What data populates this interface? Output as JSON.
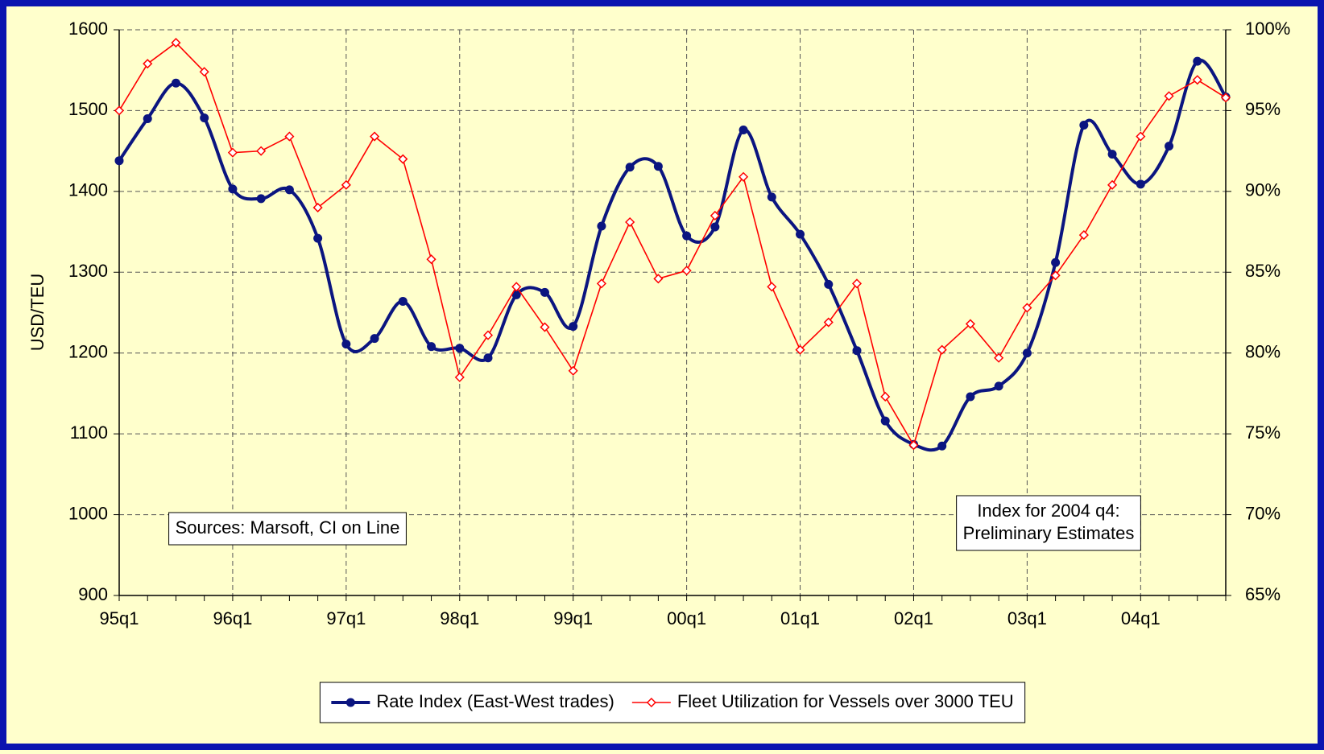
{
  "chart_data": {
    "type": "line",
    "y_label": "USD/TEU",
    "categories": [
      "95q1",
      null,
      null,
      null,
      "96q1",
      null,
      null,
      null,
      "97q1",
      null,
      null,
      null,
      "98q1",
      null,
      null,
      null,
      "99q1",
      null,
      null,
      null,
      "00q1",
      null,
      null,
      null,
      "01q1",
      null,
      null,
      null,
      "02q1",
      null,
      null,
      null,
      "03q1",
      null,
      null,
      null,
      "04q1",
      null,
      null,
      null
    ],
    "series": [
      {
        "name": "Rate Index (East-West trades)",
        "color": "#0b1580",
        "smooth": true,
        "marker": "circle",
        "values": [
          1438,
          1490,
          1534,
          1491,
          1403,
          1391,
          1402,
          1342,
          1211,
          1218,
          1264,
          1208,
          1206,
          1194,
          1272,
          1275,
          1233,
          1357,
          1430,
          1431,
          1345,
          1356,
          1476,
          1393,
          1347,
          1285,
          1203,
          1116,
          1087,
          1085,
          1146,
          1159,
          1200,
          1312,
          1482,
          1446,
          1409,
          1456,
          1561,
          1517
        ]
      },
      {
        "name": "Fleet Utilization for Vessels over 3000 TEU",
        "color": "#ff0000",
        "smooth": false,
        "marker": "diamond",
        "axis": "y2",
        "values": [
          95.0,
          97.9,
          99.2,
          97.4,
          92.4,
          92.5,
          93.4,
          89.0,
          90.4,
          93.4,
          92.0,
          85.8,
          78.5,
          81.1,
          84.1,
          81.6,
          78.9,
          84.3,
          88.1,
          84.6,
          85.1,
          88.5,
          90.9,
          84.1,
          80.2,
          81.9,
          84.3,
          77.3,
          74.3,
          80.2,
          81.8,
          79.7,
          82.8,
          84.8,
          87.3,
          90.4,
          93.4,
          95.9,
          96.9,
          95.8
        ]
      }
    ],
    "ylim": [
      900,
      1600
    ],
    "yticks": [
      900,
      1000,
      1100,
      1200,
      1300,
      1400,
      1500,
      1600
    ],
    "y2lim": [
      65,
      100
    ],
    "y2ticks": [
      {
        "value": 65,
        "label": "65%"
      },
      {
        "value": 70,
        "label": "70%"
      },
      {
        "value": 75,
        "label": "75%"
      },
      {
        "value": 80,
        "label": "80%"
      },
      {
        "value": 85,
        "label": "85%"
      },
      {
        "value": 90,
        "label": "90%"
      },
      {
        "value": 95,
        "label": "95%"
      },
      {
        "value": 100,
        "label": "100%"
      }
    ],
    "grid": true,
    "legend": "bottom",
    "notes": [
      {
        "lines": [
          "Sources:  Marsoft, CI on Line"
        ]
      },
      {
        "lines": [
          "Index for 2004 q4:",
          "Preliminary Estimates"
        ]
      }
    ]
  }
}
